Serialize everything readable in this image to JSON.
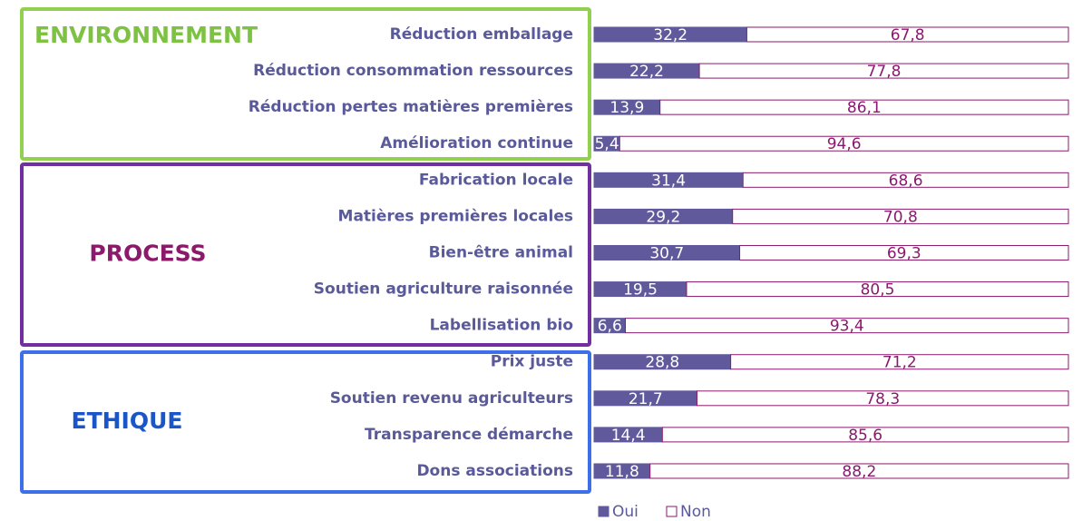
{
  "chart_data": {
    "type": "stacked-bar-horizontal",
    "groups": [
      {
        "name": "ENVIRONNEMENT",
        "color": "#7dc242",
        "border": "#92d050",
        "categories": [
          "Réduction emballage",
          "Réduction consommation ressources",
          "Réduction pertes matières premières",
          "Amélioration continue"
        ]
      },
      {
        "name": "PROCESS",
        "color": "#8b1a6b",
        "border": "#7030a0",
        "categories": [
          "Fabrication locale",
          "Matières premières locales",
          "Bien-être animal",
          "Soutien agriculture raisonnée",
          "Labellisation bio"
        ]
      },
      {
        "name": "ETHIQUE",
        "color": "#1a56c8",
        "border": "#3d6fe8",
        "categories": [
          "Prix juste",
          "Soutien revenu agriculteurs",
          "Transparence démarche",
          "Dons associations"
        ]
      }
    ],
    "series": [
      {
        "name": "Oui",
        "color": "#605a9c",
        "label_color": "#ffffff",
        "values": [
          32.2,
          22.2,
          13.9,
          5.4,
          31.4,
          29.2,
          30.7,
          19.5,
          6.6,
          28.8,
          21.7,
          14.4,
          11.8
        ],
        "value_labels": [
          "32,2",
          "22,2",
          "13,9",
          "5,4",
          "31,4",
          "29,2",
          "30,7",
          "19,5",
          "6,6",
          "28,8",
          "21,7",
          "14,4",
          "11,8"
        ]
      },
      {
        "name": "Non",
        "color": "#ffffff",
        "label_color": "#8b1870",
        "values": [
          67.8,
          77.8,
          86.1,
          94.6,
          68.6,
          70.8,
          69.3,
          80.5,
          93.4,
          71.2,
          78.3,
          85.6,
          88.2
        ],
        "value_labels": [
          "67,8",
          "77,8",
          "86,1",
          "94,6",
          "68,6",
          "70,8",
          "69,3",
          "80,5",
          "93,4",
          "71,2",
          "78,3",
          "85,6",
          "88,2"
        ]
      }
    ],
    "legend": "bottom"
  }
}
